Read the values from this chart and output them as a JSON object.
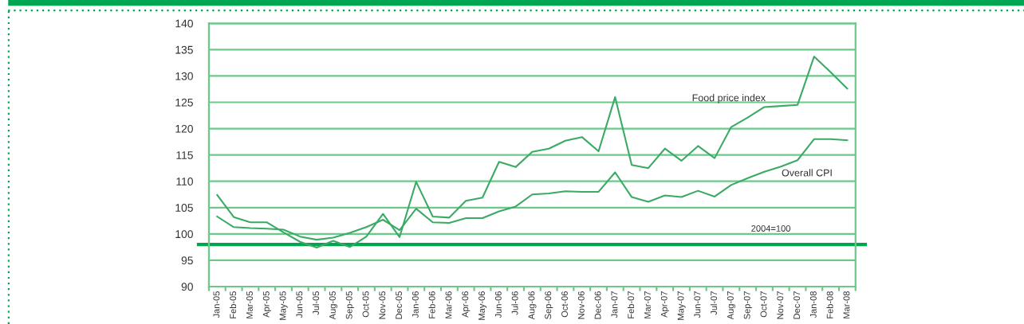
{
  "chart_data": {
    "type": "line",
    "categories": [
      "Jan-05",
      "Feb-05",
      "Mar-05",
      "Apr-05",
      "May-05",
      "Jun-05",
      "Jul-05",
      "Aug-05",
      "Sep-05",
      "Oct-05",
      "Nov-05",
      "Dec-05",
      "Jan-06",
      "Feb-06",
      "Mar-06",
      "Apr-06",
      "May-06",
      "Jun-06",
      "Jul-06",
      "Aug-06",
      "Sep-06",
      "Oct-06",
      "Nov-06",
      "Dec-06",
      "Jan-07",
      "Feb-07",
      "Mar-07",
      "Apr-07",
      "May-07",
      "Jun-07",
      "Jul-07",
      "Aug-07",
      "Sep-07",
      "Oct-07",
      "Nov-07",
      "Dec-07",
      "Jan-08",
      "Feb-08",
      "Mar-08"
    ],
    "series": [
      {
        "name": "Food price index",
        "color": "#3aaa64",
        "values": [
          107.4,
          103.2,
          102.2,
          102.2,
          100.3,
          98.5,
          97.4,
          98.7,
          97.5,
          99.5,
          103.8,
          99.4,
          109.9,
          103.3,
          103.1,
          106.3,
          106.9,
          113.7,
          112.7,
          115.6,
          116.2,
          117.7,
          118.4,
          115.7,
          126.0,
          113.1,
          112.5,
          116.2,
          113.9,
          116.7,
          114.4,
          120.3,
          122.1,
          124.1,
          124.3,
          124.5,
          133.7,
          130.7,
          127.6
        ]
      },
      {
        "name": "Overall CPI",
        "color": "#3aaa64",
        "values": [
          103.3,
          101.3,
          101.1,
          101.0,
          100.8,
          99.5,
          98.9,
          99.3,
          100.2,
          101.3,
          102.7,
          100.7,
          104.8,
          102.2,
          102.1,
          103.0,
          103.0,
          104.3,
          105.2,
          107.5,
          107.7,
          108.1,
          108.0,
          108.0,
          111.7,
          107.0,
          106.1,
          107.3,
          107.0,
          108.2,
          107.1,
          109.3,
          110.6,
          111.8,
          112.8,
          114.0,
          118.0,
          118.0,
          117.8
        ]
      }
    ],
    "ylim": [
      90,
      140
    ],
    "yticks": [
      90,
      95,
      100,
      105,
      110,
      115,
      120,
      125,
      130,
      135,
      140
    ],
    "grid": "y",
    "ref_lines": [
      {
        "axis": "y",
        "value": 98,
        "color": "#00a550"
      }
    ],
    "annotations": [
      "2004=100"
    ]
  }
}
